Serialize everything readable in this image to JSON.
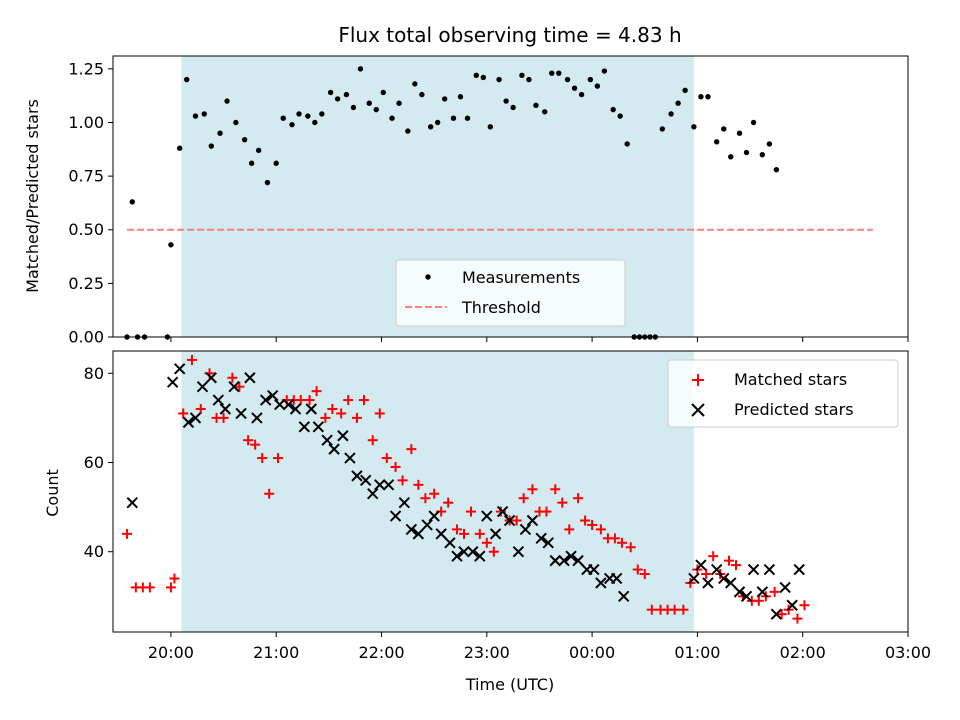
{
  "chart_data": [
    {
      "type": "scatter",
      "title": "Flux total observing time = 4.83 h",
      "xlabel": "",
      "ylabel": "Matched/Predicted stars",
      "xlim": [
        "19:27",
        "03:00"
      ],
      "ylim": [
        0,
        1.31
      ],
      "x_ticks": [
        "20:00",
        "21:00",
        "22:00",
        "23:00",
        "00:00",
        "01:00",
        "02:00",
        "03:00"
      ],
      "y_ticks": [
        "0.00",
        "0.25",
        "0.50",
        "0.75",
        "1.00",
        "1.25"
      ],
      "shaded_interval": {
        "start": "20:06",
        "end": "00:58",
        "color": "#d3eaf0"
      },
      "legend": {
        "position": "lower center"
      },
      "series": [
        {
          "name": "Measurements",
          "marker": "dot",
          "color": "#000000",
          "points": [
            [
              "19:35",
              0.0
            ],
            [
              "19:38",
              0.63
            ],
            [
              "19:41",
              0.0
            ],
            [
              "19:45",
              0.0
            ],
            [
              "19:58",
              0.0
            ],
            [
              "20:00",
              0.43
            ],
            [
              "20:05",
              0.88
            ],
            [
              "20:09",
              1.2
            ],
            [
              "20:14",
              1.03
            ],
            [
              "20:19",
              1.04
            ],
            [
              "20:23",
              0.89
            ],
            [
              "20:28",
              0.95
            ],
            [
              "20:32",
              1.1
            ],
            [
              "20:37",
              1.0
            ],
            [
              "20:42",
              0.92
            ],
            [
              "20:46",
              0.81
            ],
            [
              "20:50",
              0.87
            ],
            [
              "20:55",
              0.72
            ],
            [
              "21:00",
              0.81
            ],
            [
              "21:04",
              1.02
            ],
            [
              "21:09",
              0.99
            ],
            [
              "21:13",
              1.04
            ],
            [
              "21:18",
              1.03
            ],
            [
              "21:22",
              1.0
            ],
            [
              "21:26",
              1.04
            ],
            [
              "21:31",
              1.14
            ],
            [
              "21:35",
              1.11
            ],
            [
              "21:40",
              1.13
            ],
            [
              "21:44",
              1.07
            ],
            [
              "21:48",
              1.25
            ],
            [
              "21:53",
              1.09
            ],
            [
              "21:57",
              1.06
            ],
            [
              "22:01",
              1.14
            ],
            [
              "22:06",
              1.02
            ],
            [
              "22:10",
              1.09
            ],
            [
              "22:15",
              0.96
            ],
            [
              "22:19",
              1.18
            ],
            [
              "22:23",
              1.13
            ],
            [
              "22:28",
              0.98
            ],
            [
              "22:32",
              1.0
            ],
            [
              "22:36",
              1.11
            ],
            [
              "22:41",
              1.02
            ],
            [
              "22:45",
              1.12
            ],
            [
              "22:49",
              1.02
            ],
            [
              "22:54",
              1.22
            ],
            [
              "22:58",
              1.21
            ],
            [
              "23:02",
              0.98
            ],
            [
              "23:07",
              1.2
            ],
            [
              "23:11",
              1.1
            ],
            [
              "23:15",
              1.07
            ],
            [
              "23:20",
              1.22
            ],
            [
              "23:24",
              1.2
            ],
            [
              "23:28",
              1.08
            ],
            [
              "23:33",
              1.05
            ],
            [
              "23:37",
              1.23
            ],
            [
              "23:41",
              1.23
            ],
            [
              "23:46",
              1.2
            ],
            [
              "23:50",
              1.16
            ],
            [
              "23:54",
              1.13
            ],
            [
              "23:59",
              1.2
            ],
            [
              "00:03",
              1.17
            ],
            [
              "00:07",
              1.24
            ],
            [
              "00:12",
              1.06
            ],
            [
              "00:16",
              1.03
            ],
            [
              "00:20",
              0.9
            ],
            [
              "00:24",
              0.0
            ],
            [
              "00:27",
              0.0
            ],
            [
              "00:30",
              0.0
            ],
            [
              "00:33",
              0.0
            ],
            [
              "00:36",
              0.0
            ],
            [
              "00:40",
              0.97
            ],
            [
              "00:45",
              1.04
            ],
            [
              "00:49",
              1.09
            ],
            [
              "00:53",
              1.15
            ],
            [
              "00:58",
              0.98
            ],
            [
              "01:02",
              1.12
            ],
            [
              "01:06",
              1.12
            ],
            [
              "01:11",
              0.91
            ],
            [
              "01:15",
              0.97
            ],
            [
              "01:19",
              0.84
            ],
            [
              "01:24",
              0.95
            ],
            [
              "01:28",
              0.86
            ],
            [
              "01:32",
              1.0
            ],
            [
              "01:37",
              0.85
            ],
            [
              "01:41",
              0.9
            ],
            [
              "01:45",
              0.78
            ]
          ]
        },
        {
          "name": "Threshold",
          "style": "dashed",
          "color": "#ff7f7f",
          "points": [
            [
              "19:35",
              0.5
            ],
            [
              "02:40",
              0.5
            ]
          ]
        }
      ]
    },
    {
      "type": "scatter",
      "title": "",
      "xlabel": "Time (UTC)",
      "ylabel": "Count",
      "xlim": [
        "19:27",
        "03:00"
      ],
      "ylim": [
        22,
        85
      ],
      "x_ticks": [
        "20:00",
        "21:00",
        "22:00",
        "23:00",
        "00:00",
        "01:00",
        "02:00",
        "03:00"
      ],
      "y_ticks": [
        "40",
        "60",
        "80"
      ],
      "shaded_interval": {
        "start": "20:06",
        "end": "00:58",
        "color": "#d3eaf0"
      },
      "legend": {
        "position": "top-right"
      },
      "series": [
        {
          "name": "Matched stars",
          "marker": "plus",
          "color": "#ff0000",
          "points": [
            [
              "19:35",
              44
            ],
            [
              "19:40",
              32
            ],
            [
              "19:44",
              32
            ],
            [
              "19:48",
              32
            ],
            [
              "20:00",
              32
            ],
            [
              "20:02",
              34
            ],
            [
              "20:07",
              71
            ],
            [
              "20:12",
              83
            ],
            [
              "20:17",
              72
            ],
            [
              "20:22",
              80
            ],
            [
              "20:26",
              70
            ],
            [
              "20:30",
              70
            ],
            [
              "20:35",
              79
            ],
            [
              "20:39",
              77
            ],
            [
              "20:44",
              65
            ],
            [
              "20:48",
              64
            ],
            [
              "20:52",
              61
            ],
            [
              "20:56",
              53
            ],
            [
              "21:01",
              61
            ],
            [
              "21:06",
              74
            ],
            [
              "21:10",
              74
            ],
            [
              "21:14",
              74
            ],
            [
              "21:19",
              74
            ],
            [
              "21:23",
              76
            ],
            [
              "21:28",
              70
            ],
            [
              "21:32",
              72
            ],
            [
              "21:37",
              71
            ],
            [
              "21:41",
              74
            ],
            [
              "21:46",
              70
            ],
            [
              "21:50",
              74
            ],
            [
              "21:55",
              65
            ],
            [
              "21:59",
              71
            ],
            [
              "22:03",
              61
            ],
            [
              "22:08",
              59
            ],
            [
              "22:12",
              56
            ],
            [
              "22:17",
              63
            ],
            [
              "22:21",
              55
            ],
            [
              "22:25",
              52
            ],
            [
              "22:30",
              53
            ],
            [
              "22:34",
              49
            ],
            [
              "22:38",
              51
            ],
            [
              "22:43",
              45
            ],
            [
              "22:47",
              44
            ],
            [
              "22:51",
              49
            ],
            [
              "22:56",
              44
            ],
            [
              "23:00",
              42
            ],
            [
              "23:04",
              40
            ],
            [
              "23:08",
              49
            ],
            [
              "23:13",
              47
            ],
            [
              "23:17",
              47
            ],
            [
              "23:21",
              52
            ],
            [
              "23:26",
              54
            ],
            [
              "23:30",
              49
            ],
            [
              "23:34",
              49
            ],
            [
              "23:39",
              54
            ],
            [
              "23:43",
              51
            ],
            [
              "23:47",
              45
            ],
            [
              "23:52",
              52
            ],
            [
              "23:56",
              47
            ],
            [
              "00:00",
              46
            ],
            [
              "00:05",
              45
            ],
            [
              "00:09",
              43
            ],
            [
              "00:13",
              43
            ],
            [
              "00:17",
              42
            ],
            [
              "00:22",
              41
            ],
            [
              "00:26",
              36
            ],
            [
              "00:30",
              35
            ],
            [
              "00:34",
              27
            ],
            [
              "00:39",
              27
            ],
            [
              "00:43",
              27
            ],
            [
              "00:47",
              27
            ],
            [
              "00:52",
              27
            ],
            [
              "00:56",
              33
            ],
            [
              "01:00",
              36
            ],
            [
              "01:05",
              35
            ],
            [
              "01:09",
              39
            ],
            [
              "01:13",
              35
            ],
            [
              "01:18",
              38
            ],
            [
              "01:22",
              37
            ],
            [
              "01:26",
              30
            ],
            [
              "01:31",
              29
            ],
            [
              "01:35",
              29
            ],
            [
              "01:39",
              30
            ],
            [
              "01:44",
              31
            ],
            [
              "01:48",
              26
            ],
            [
              "01:52",
              27
            ],
            [
              "01:57",
              25
            ],
            [
              "02:01",
              28
            ]
          ]
        },
        {
          "name": "Predicted stars",
          "marker": "x",
          "color": "#000000",
          "points": [
            [
              "19:38",
              51
            ],
            [
              "20:01",
              78
            ],
            [
              "20:05",
              81
            ],
            [
              "20:10",
              69
            ],
            [
              "20:14",
              70
            ],
            [
              "20:18",
              77
            ],
            [
              "20:23",
              79
            ],
            [
              "20:27",
              74
            ],
            [
              "20:31",
              72
            ],
            [
              "20:36",
              77
            ],
            [
              "20:40",
              71
            ],
            [
              "20:45",
              79
            ],
            [
              "20:49",
              70
            ],
            [
              "20:54",
              74
            ],
            [
              "20:58",
              75
            ],
            [
              "21:02",
              73
            ],
            [
              "21:07",
              73
            ],
            [
              "21:11",
              72
            ],
            [
              "21:16",
              68
            ],
            [
              "21:20",
              72
            ],
            [
              "21:24",
              68
            ],
            [
              "21:29",
              65
            ],
            [
              "21:33",
              63
            ],
            [
              "21:38",
              66
            ],
            [
              "21:42",
              61
            ],
            [
              "21:46",
              57
            ],
            [
              "21:51",
              56
            ],
            [
              "21:55",
              53
            ],
            [
              "21:59",
              55
            ],
            [
              "22:04",
              55
            ],
            [
              "22:08",
              48
            ],
            [
              "22:13",
              51
            ],
            [
              "22:17",
              45
            ],
            [
              "22:21",
              44
            ],
            [
              "22:26",
              46
            ],
            [
              "22:30",
              48
            ],
            [
              "22:34",
              44
            ],
            [
              "22:39",
              42
            ],
            [
              "22:43",
              39
            ],
            [
              "22:47",
              40
            ],
            [
              "22:52",
              40
            ],
            [
              "22:56",
              39
            ],
            [
              "23:00",
              48
            ],
            [
              "23:05",
              44
            ],
            [
              "23:09",
              49
            ],
            [
              "23:13",
              47
            ],
            [
              "23:18",
              40
            ],
            [
              "23:22",
              45
            ],
            [
              "23:26",
              47
            ],
            [
              "23:31",
              43
            ],
            [
              "23:35",
              42
            ],
            [
              "23:39",
              38
            ],
            [
              "23:44",
              38
            ],
            [
              "23:48",
              39
            ],
            [
              "23:52",
              38
            ],
            [
              "23:57",
              36
            ],
            [
              "00:01",
              36
            ],
            [
              "00:05",
              33
            ],
            [
              "00:10",
              34
            ],
            [
              "00:14",
              34
            ],
            [
              "00:18",
              30
            ],
            [
              "00:58",
              34
            ],
            [
              "01:02",
              37
            ],
            [
              "01:06",
              33
            ],
            [
              "01:11",
              36
            ],
            [
              "01:15",
              34
            ],
            [
              "01:19",
              33
            ],
            [
              "01:24",
              31
            ],
            [
              "01:28",
              30
            ],
            [
              "01:32",
              36
            ],
            [
              "01:37",
              31
            ],
            [
              "01:41",
              36
            ],
            [
              "01:45",
              26
            ],
            [
              "01:50",
              32
            ],
            [
              "01:54",
              28
            ],
            [
              "01:58",
              36
            ]
          ]
        }
      ]
    }
  ]
}
